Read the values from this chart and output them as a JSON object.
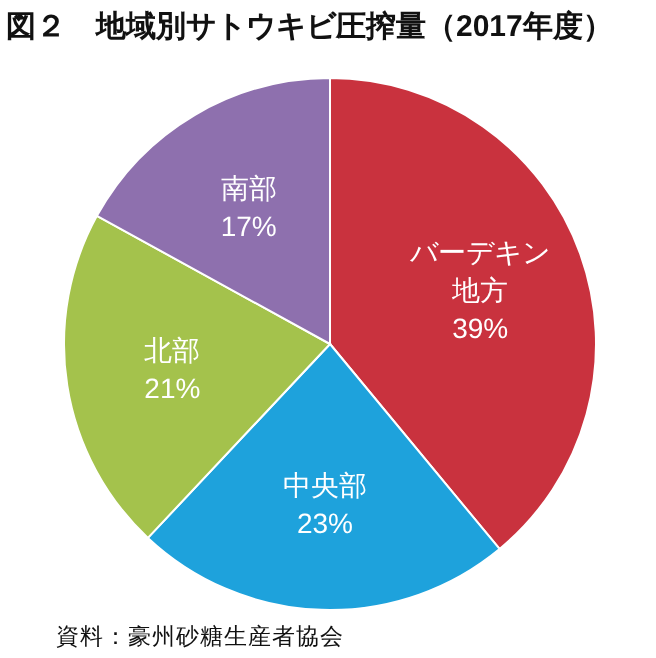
{
  "chart_data": {
    "type": "pie",
    "title": "図２　地域別サトウキビ圧搾量（2017年度）",
    "categories": [
      "バーデキン地方",
      "中央部",
      "北部",
      "南部"
    ],
    "values": [
      39,
      23,
      21,
      17
    ],
    "value_labels": [
      "39%",
      "23%",
      "21%",
      "17%"
    ],
    "colors": [
      "#c9323e",
      "#1ea2dc",
      "#a4c24c",
      "#8e70ae"
    ],
    "annotations": [
      "資料：豪州砂糖生産者協会"
    ]
  }
}
